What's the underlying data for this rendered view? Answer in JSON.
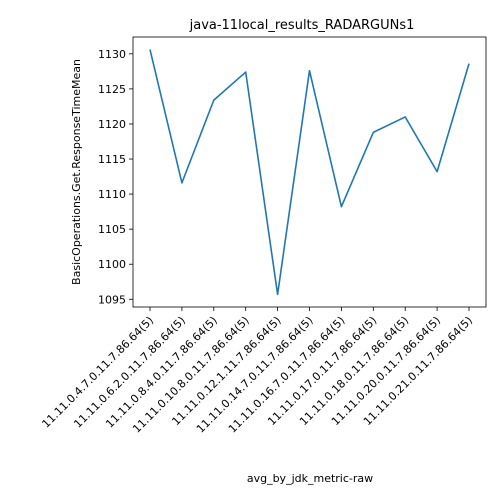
{
  "chart_data": {
    "type": "line",
    "title": "java-11local_results_RADARGUNs1",
    "xlabel": "avg_by_jdk_metric-raw",
    "ylabel": "BasicOperations.Get.ResponseTimeMean",
    "categories": [
      "11.11.0.4.7.0.11.7.86.64(5)",
      "11.11.0.6.2.0.11.7.86.64(5)",
      "11.11.0.8.4.0.11.7.86.64(5)",
      "11.11.0.10.8.0.11.7.86.64(5)",
      "11.11.0.12.1.11.7.86.64(5)",
      "11.11.0.14.7.0.11.7.86.64(5)",
      "11.11.0.16.7.0.11.7.86.64(5)",
      "11.11.0.17.0.11.7.86.64(5)",
      "11.11.0.18.0.11.7.86.64(5)",
      "11.11.0.20.0.11.7.86.64(5)",
      "11.11.0.21.0.11.7.86.64(5)"
    ],
    "values": [
      1130.6,
      1111.6,
      1123.4,
      1127.4,
      1095.7,
      1127.6,
      1108.2,
      1118.8,
      1121.0,
      1113.2,
      1128.6
    ],
    "yticks": [
      1095,
      1100,
      1105,
      1110,
      1115,
      1120,
      1125,
      1130
    ],
    "ylim": [
      1093.9,
      1132.4
    ],
    "grid": false,
    "line_color": "#1f77b4"
  }
}
